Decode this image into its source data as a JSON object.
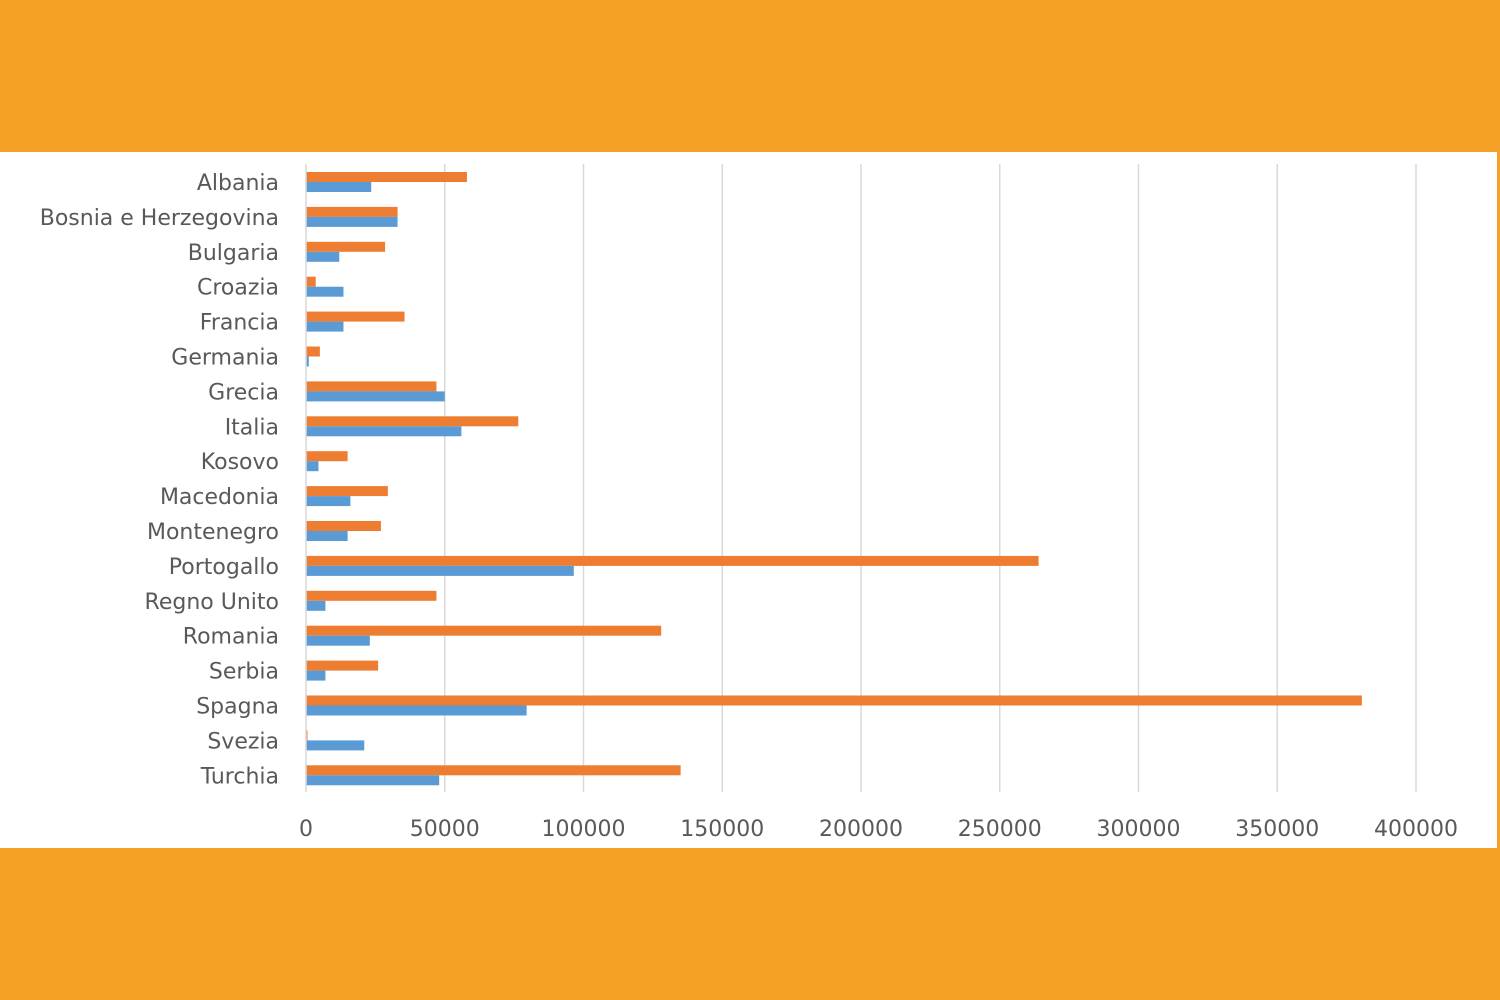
{
  "colors": {
    "frame": "#F5A128",
    "series_a": "#ED7D31",
    "series_b": "#5B9BD5",
    "grid": "#D9D9D9",
    "text": "#595959"
  },
  "chart_data": {
    "type": "bar",
    "orientation": "horizontal",
    "categories": [
      "Albania",
      "Bosnia e Herzegovina",
      "Bulgaria",
      "Croazia",
      "Francia",
      "Germania",
      "Grecia",
      "Italia",
      "Kosovo",
      "Macedonia",
      "Montenegro",
      "Portogallo",
      "Regno Unito",
      "Romania",
      "Serbia",
      "Spagna",
      "Svezia",
      "Turchia"
    ],
    "series": [
      {
        "color": "#ED7D31",
        "values": [
          58000,
          33000,
          28500,
          3500,
          35500,
          5000,
          47000,
          76500,
          15000,
          29500,
          27000,
          264000,
          47000,
          128000,
          26000,
          380500,
          500,
          135000
        ]
      },
      {
        "color": "#5B9BD5",
        "values": [
          23500,
          33000,
          12000,
          13500,
          13500,
          1000,
          50000,
          56000,
          4500,
          16000,
          15000,
          96500,
          7000,
          23000,
          7000,
          79500,
          21000,
          48000
        ]
      }
    ],
    "xlim": [
      0,
      400000
    ],
    "xticks": [
      "0",
      "50000",
      "100000",
      "150000",
      "200000",
      "250000",
      "300000",
      "350000",
      "400000"
    ],
    "grid": true,
    "legend": "none"
  }
}
